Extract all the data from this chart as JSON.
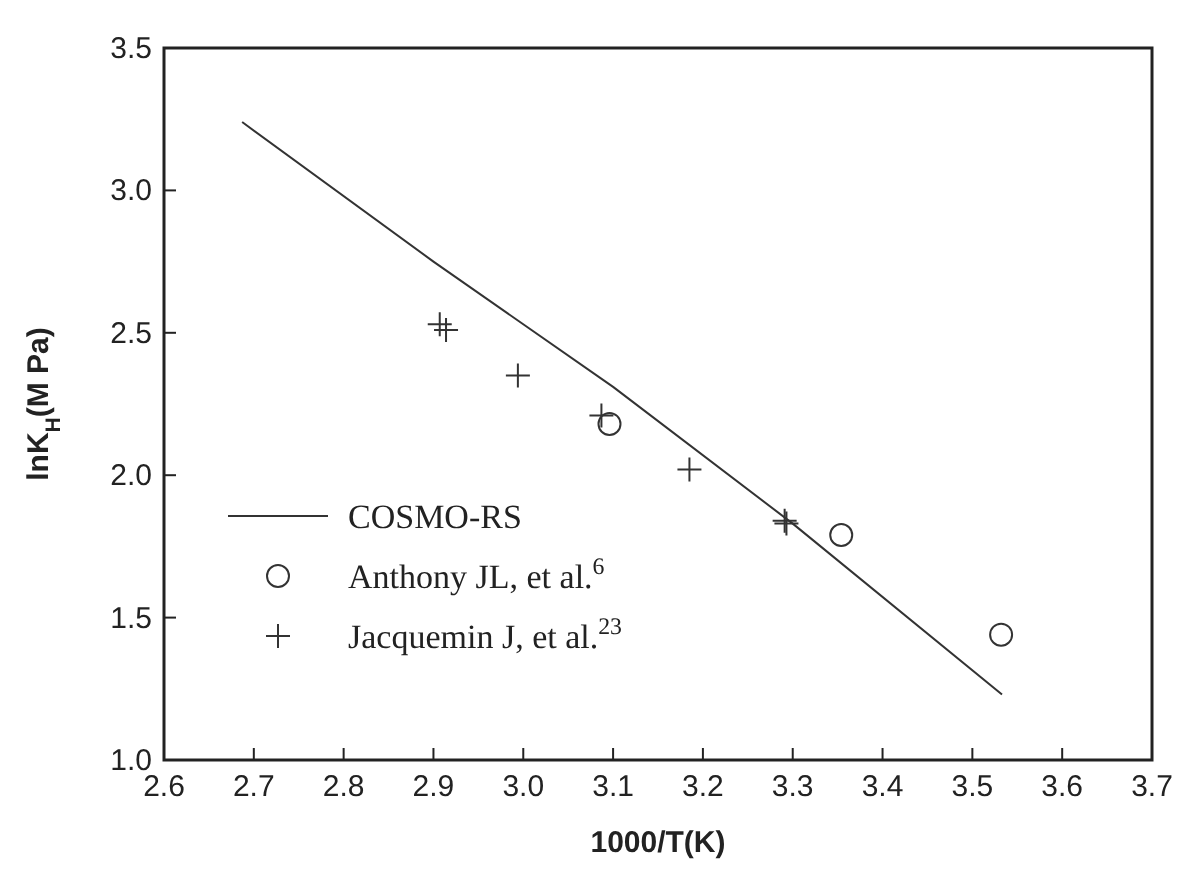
{
  "chart_data": {
    "type": "scatter",
    "xlabel": "1000/T(K)",
    "ylabel": "lnK$_{H}$(M Pa)",
    "xlim": [
      2.6,
      3.7
    ],
    "ylim": [
      1.0,
      3.5
    ],
    "xticks": [
      2.6,
      2.7,
      2.8,
      2.9,
      {
        "value": 3,
        "label": "3.0"
      },
      3.1,
      3.2,
      3.3,
      3.4,
      3.5,
      3.6,
      3.7
    ],
    "yticks": [
      {
        "value": 1,
        "label": "1.0"
      },
      1.5,
      {
        "value": 2,
        "label": "2.0"
      },
      2.5,
      {
        "value": 3,
        "label": "3.0"
      },
      3.5
    ],
    "grid": false,
    "legend": "bottom left",
    "series": [
      {
        "name": "COSMO-RS",
        "type": "line",
        "color": "#333333",
        "marker": "none",
        "line_style": "solid",
        "x": [
          2.687,
          2.9,
          3.1,
          3.3,
          3.533
        ],
        "values": [
          3.24,
          2.75,
          2.31,
          1.83,
          1.23
        ]
      },
      {
        "name": "Anthony JL, et al.$^{6}$",
        "color": "#333333",
        "marker": "circle",
        "x": [
          3.096,
          3.354,
          3.532
        ],
        "values": [
          2.18,
          1.79,
          1.44
        ]
      },
      {
        "name": "Jacquemin J, et al.$^{23}$",
        "color": "#333333",
        "marker": "cross",
        "x": [
          2.907,
          2.914,
          2.994,
          3.087,
          3.185,
          3.291,
          3.293
        ],
        "values": [
          2.53,
          2.51,
          2.35,
          2.21,
          2.02,
          1.84,
          1.83
        ]
      }
    ]
  }
}
